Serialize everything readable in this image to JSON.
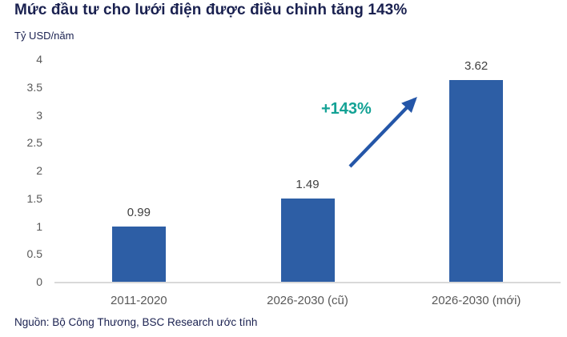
{
  "header": {
    "title": "Mức đầu tư cho lưới điện được điều chỉnh tăng 143%",
    "unit_label": "Tỷ USD/năm"
  },
  "chart_data": {
    "type": "bar",
    "title": "Mức đầu tư cho lưới điện được điều chỉnh tăng 143%",
    "ylabel": "Tỷ USD/năm",
    "xlabel": "",
    "categories": [
      "2011-2020",
      "2026-2030 (cũ)",
      "2026-2030 (mới)"
    ],
    "values": [
      0.99,
      1.49,
      3.62
    ],
    "value_labels": [
      "0.99",
      "1.49",
      "3.62"
    ],
    "ylim": [
      0,
      4
    ],
    "yticks": [
      0,
      0.5,
      1,
      1.5,
      2,
      2.5,
      3,
      3.5,
      4
    ],
    "grid": false,
    "legend": "none",
    "bar_color": "#2d5ea5",
    "annotation": {
      "text": "+143%",
      "color": "#13a295",
      "arrow_color": "#2456a8"
    }
  },
  "footer": {
    "source": "Nguồn: Bộ Công Thương, BSC Research ước tính"
  },
  "colors": {
    "title": "#1a2150",
    "axis_label": "#595959",
    "value_label": "#404040",
    "axis_line": "#d9d9d9",
    "bar": "#2d5ea5",
    "arrow": "#2456a8",
    "annotation": "#13a295"
  }
}
